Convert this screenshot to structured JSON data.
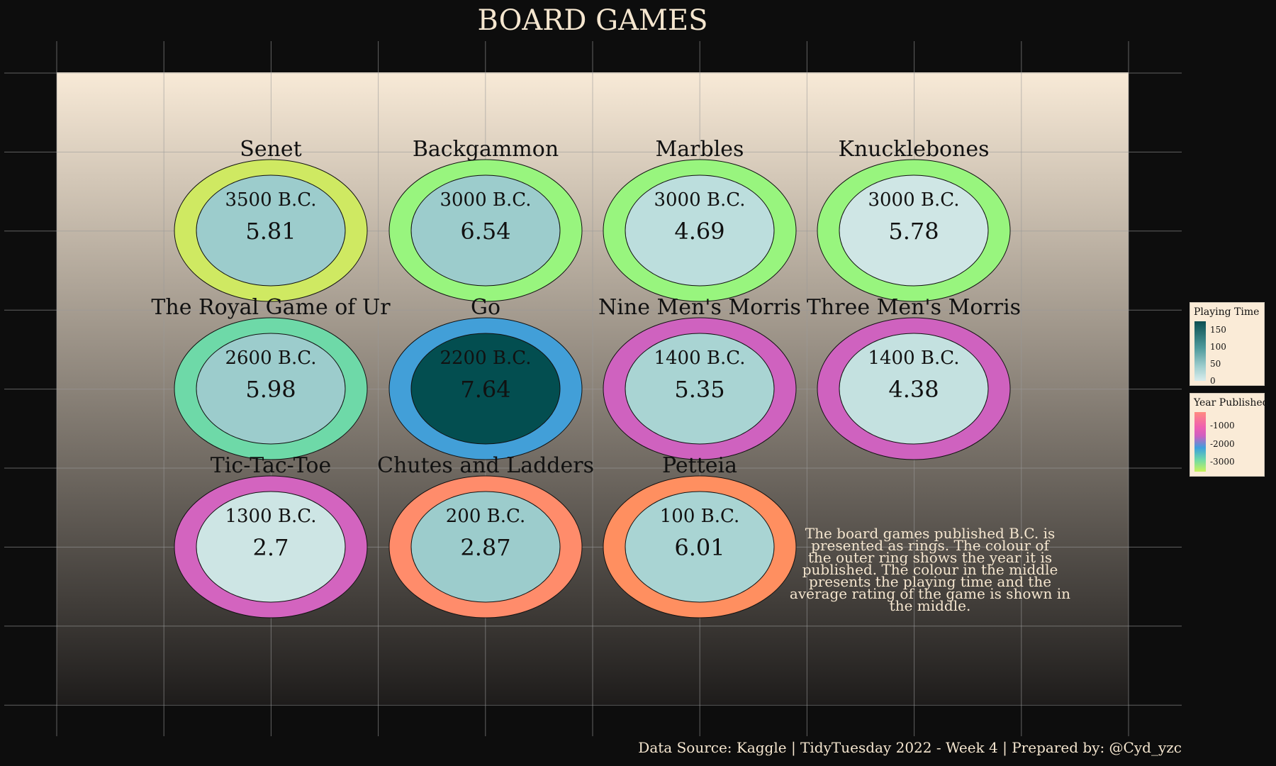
{
  "title": "BOARD GAMES",
  "caption": "Data Source: Kaggle | TidyTuesday 2022 - Week 4 | Prepared by: @Cyd_yzc",
  "annotation_lines": [
    "The board games published B.C. is",
    "presented as rings. The colour of",
    "the outer ring shows the year it is",
    "published. The colour in the middle",
    "presents the playing time and the",
    "average rating of the game is shown in",
    "the middle."
  ],
  "colors": {
    "page_background": "#0d0d0d",
    "panel_gradient_top": "#f8ead7",
    "panel_gradient_bottom": "#1e1c1b",
    "text_light": "#f5e6cf",
    "outline": "#111111"
  },
  "legends": {
    "playing_time": {
      "title": "Playing Time",
      "ticks": [
        "150",
        "100",
        "50",
        "0"
      ]
    },
    "year_published": {
      "title": "Year Published",
      "ticks": [
        "-1000",
        "-2000",
        "-3000"
      ]
    }
  },
  "chart_data": {
    "type": "table",
    "description_of_encoding": "",
    "games": [
      {
        "name": "Senet",
        "year_label": "3500 B.C.",
        "year": -3500,
        "rating": "5.81",
        "outer_color": "#cfe962",
        "inner_color": "#9ccccc"
      },
      {
        "name": "Backgammon",
        "year_label": "3000 B.C.",
        "year": -3000,
        "rating": "6.54",
        "outer_color": "#98f57e",
        "inner_color": "#9ccccc"
      },
      {
        "name": "Marbles",
        "year_label": "3000 B.C.",
        "year": -3000,
        "rating": "4.69",
        "outer_color": "#98f57e",
        "inner_color": "#bcdedd"
      },
      {
        "name": "Knucklebones",
        "year_label": "3000 B.C.",
        "year": -3000,
        "rating": "5.78",
        "outer_color": "#98f57e",
        "inner_color": "#cfe6e5"
      },
      {
        "name": "The Royal Game of Ur",
        "year_label": "2600 B.C.",
        "year": -2600,
        "rating": "5.98",
        "outer_color": "#6ed9a8",
        "inner_color": "#9ccccc"
      },
      {
        "name": "Go",
        "year_label": "2200 B.C.",
        "year": -2200,
        "rating": "7.64",
        "outer_color": "#429fd8",
        "inner_color": "#034e50"
      },
      {
        "name": "Nine Men's Morris",
        "year_label": "1400 B.C.",
        "year": -1400,
        "rating": "5.35",
        "outer_color": "#cf62bf",
        "inner_color": "#a9d4d3"
      },
      {
        "name": "Three Men's Morris",
        "year_label": "1400 B.C.",
        "year": -1400,
        "rating": "4.38",
        "outer_color": "#cf62bf",
        "inner_color": "#c4e1e0"
      },
      {
        "name": "Tic-Tac-Toe",
        "year_label": "1300 B.C.",
        "year": -1300,
        "rating": "2.7",
        "outer_color": "#d364bf",
        "inner_color": "#cde5e4"
      },
      {
        "name": "Chutes and Ladders",
        "year_label": "200 B.C.",
        "year": -200,
        "rating": "2.87",
        "outer_color": "#ff8c6b",
        "inner_color": "#9ccccc"
      },
      {
        "name": "Petteia",
        "year_label": "100 B.C.",
        "year": -100,
        "rating": "6.01",
        "outer_color": "#ff8f60",
        "inner_color": "#a9d4d3"
      }
    ]
  }
}
